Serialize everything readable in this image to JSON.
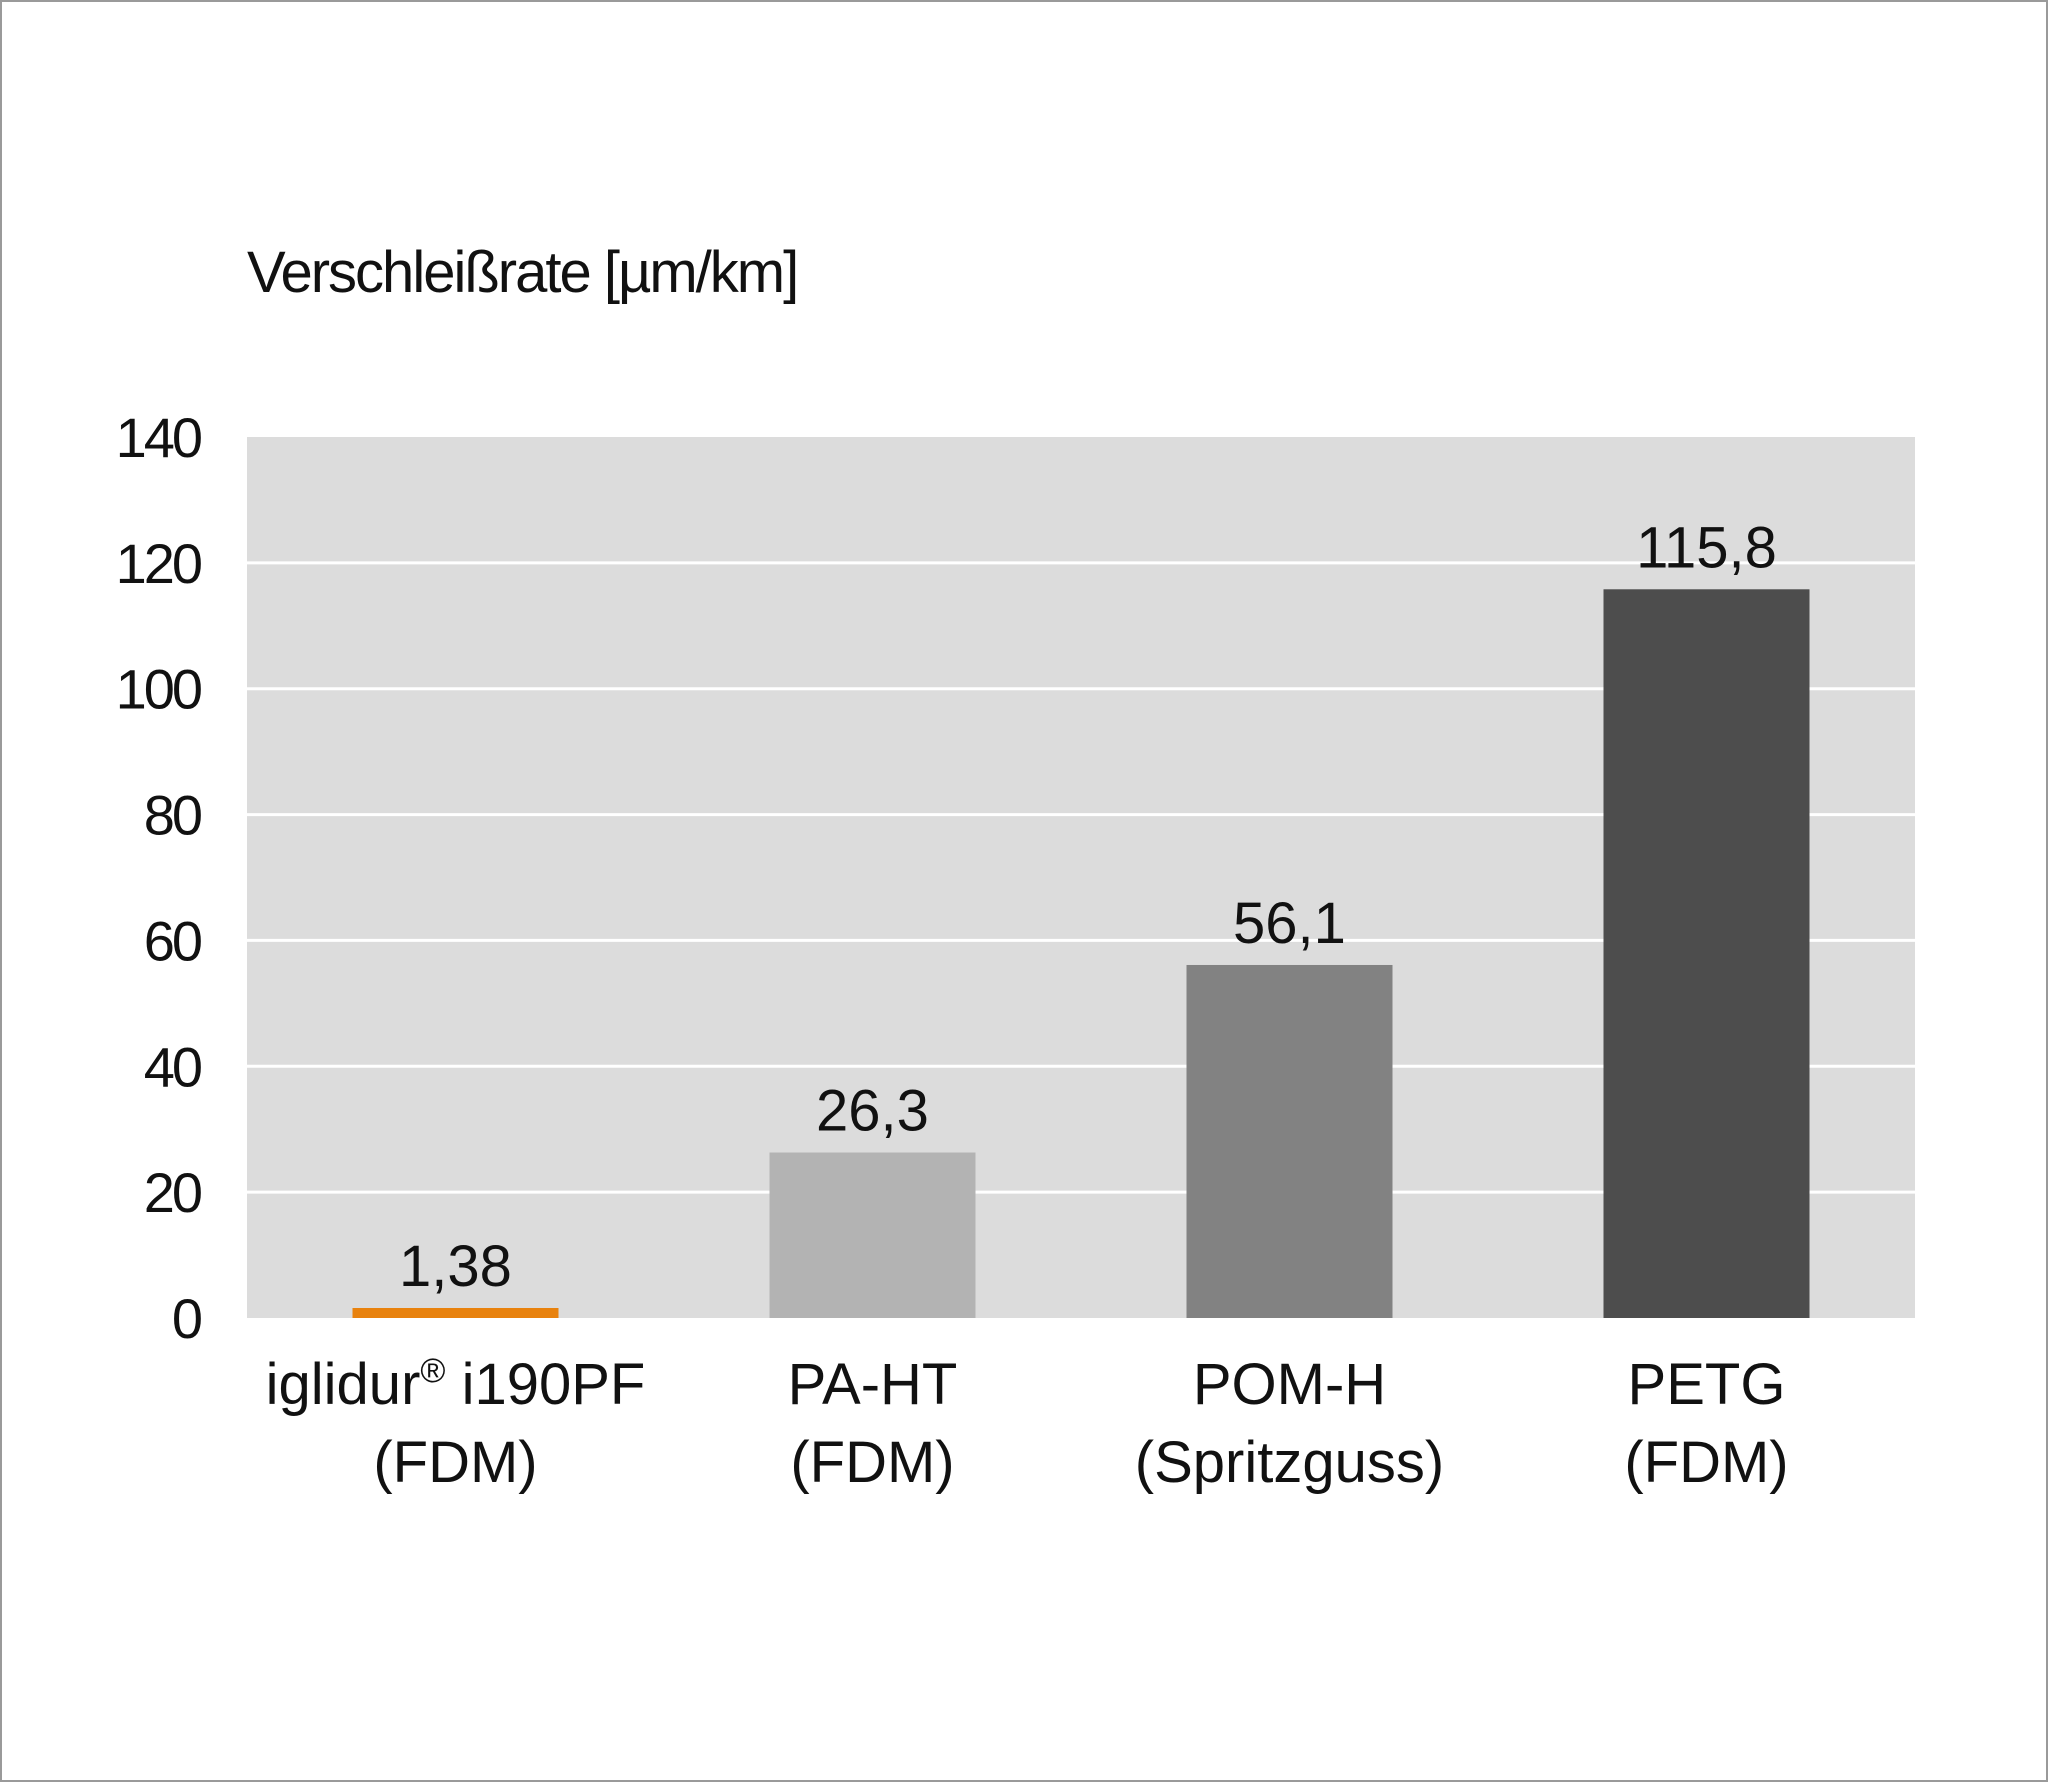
{
  "chart_data": {
    "type": "bar",
    "ylabel": "Verschleißrate [µm/km]",
    "ylim": [
      0,
      140
    ],
    "yticks": [
      "0",
      "20",
      "40",
      "60",
      "80",
      "100",
      "120",
      "140"
    ],
    "grid": true,
    "categories": [
      {
        "line1": "iglidur",
        "sup": "®",
        "line1b": " i190PF",
        "line2": "(FDM)"
      },
      {
        "line1": "PA-HT",
        "sup": "",
        "line1b": "",
        "line2": "(FDM)"
      },
      {
        "line1": "POM-H",
        "sup": "",
        "line1b": "",
        "line2": "(Spritzguss)"
      },
      {
        "line1": "PETG",
        "sup": "",
        "line1b": "",
        "line2": "(FDM)"
      }
    ],
    "values": [
      1.38,
      26.3,
      56.1,
      115.8
    ],
    "value_labels": [
      "1,38",
      "26,3",
      "56,1",
      "115,8"
    ],
    "colors": [
      "#e8820e",
      "#b3b3b3",
      "#828282",
      "#4d4d4d"
    ],
    "plot_background": "#dcdcdc",
    "grid_color": "#ffffff"
  }
}
